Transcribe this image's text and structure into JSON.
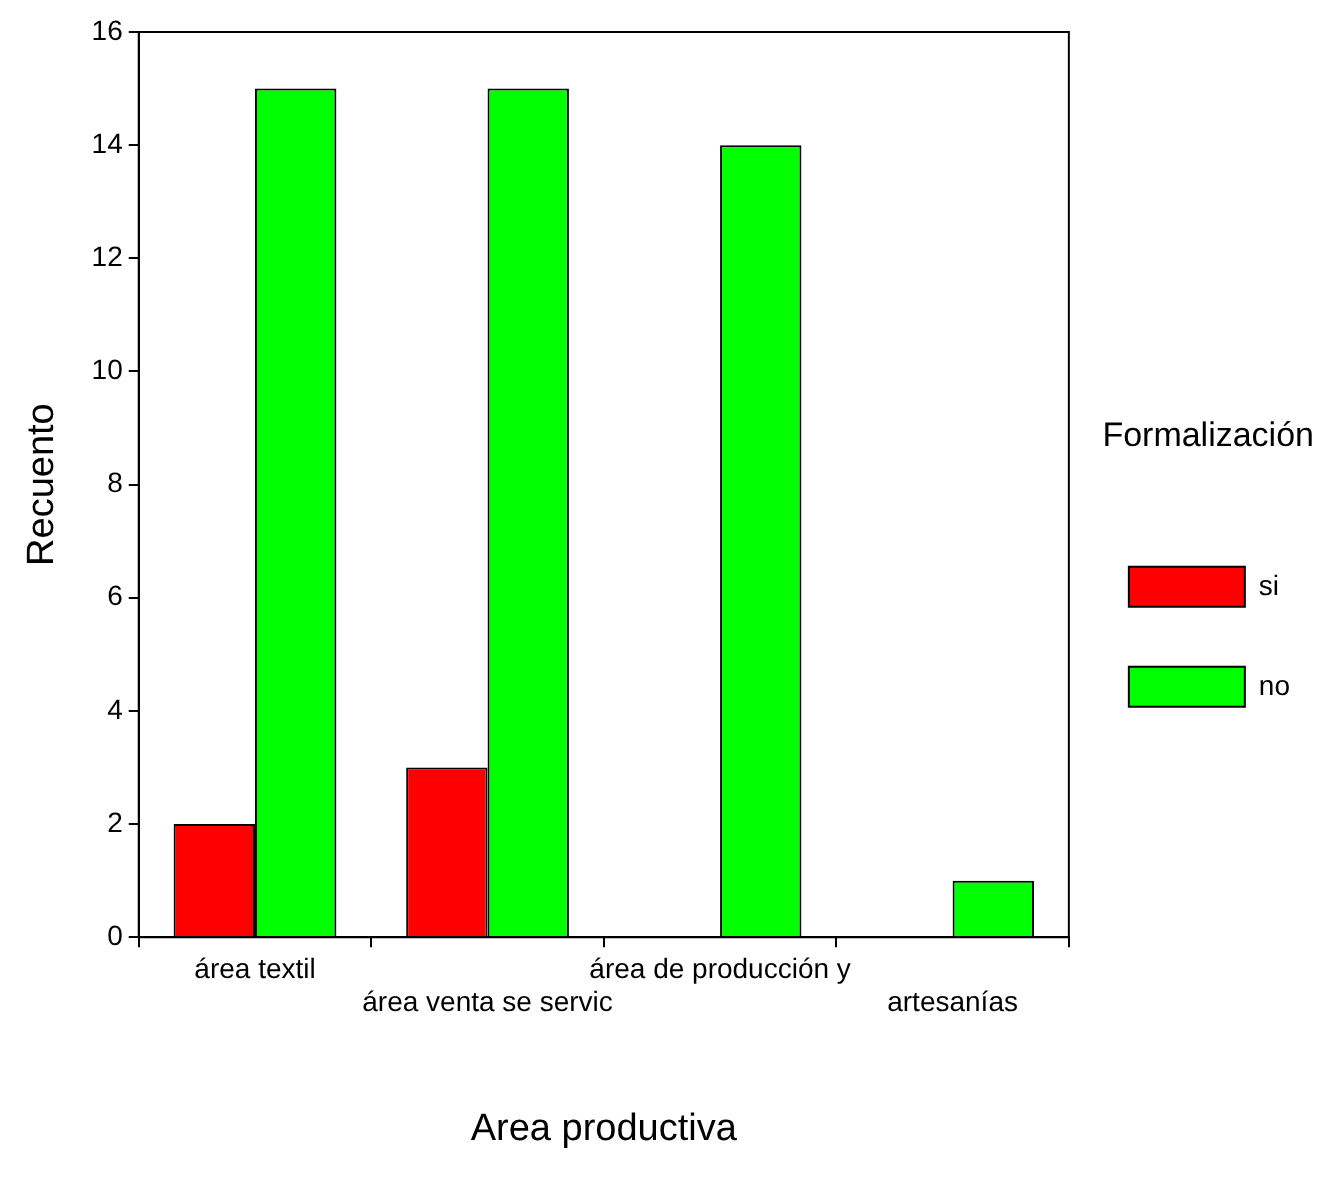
{
  "chart_data": {
    "type": "bar",
    "xlabel": "Area productiva",
    "ylabel": "Recuento",
    "legend_title": "Formalización",
    "legend": "right",
    "categories": [
      "área textil",
      "área venta se servic",
      "área de producción y",
      "artesanías"
    ],
    "series": [
      {
        "name": "si",
        "color": "#ff0000",
        "values": [
          2,
          3,
          0,
          0
        ]
      },
      {
        "name": "no",
        "color": "#00ff00",
        "values": [
          15,
          15,
          14,
          1
        ]
      }
    ],
    "ylim": [
      0,
      16
    ],
    "yticks": [
      0,
      2,
      4,
      6,
      8,
      10,
      12,
      14,
      16
    ],
    "grid": false
  }
}
